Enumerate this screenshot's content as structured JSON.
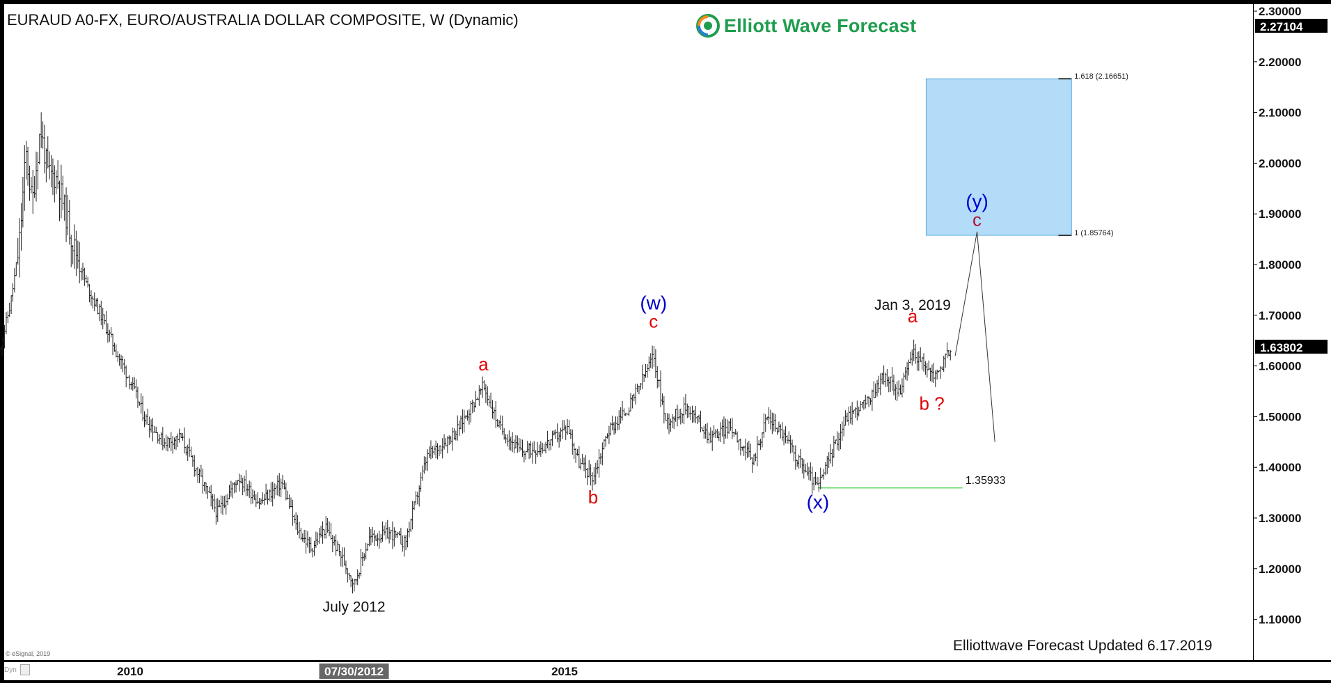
{
  "header": {
    "title": "EURAUD A0-FX, EURO/AUSTRALIA DOLLAR COMPOSITE, W (Dynamic)",
    "brand": "Elliott Wave Forecast"
  },
  "footer": {
    "updated": "Elliottwave Forecast  Updated 6.17.2019",
    "copyright": "© eSignal, 2019",
    "dyn_label": "Dyn"
  },
  "colors": {
    "bars": "#222222",
    "wave_red": "#e00000",
    "wave_blue": "#0000cc",
    "target_box": "#b3dcf8",
    "support_line": "#33cc33",
    "brand_green": "#1f9d4e"
  },
  "icons": [
    "elliott-wave-forecast-logo-icon",
    "chart-settings-icon"
  ],
  "chart_data": {
    "type": "ohlc",
    "interval": "weekly",
    "y_scale": "linear",
    "ylim": [
      1.05,
      2.3
    ],
    "y_ticks": [
      "2.30000",
      "2.20000",
      "2.10000",
      "2.00000",
      "1.90000",
      "1.80000",
      "1.70000",
      "1.60000",
      "1.50000",
      "1.40000",
      "1.30000",
      "1.20000",
      "1.10000"
    ],
    "x_ticks": [
      "2010",
      "07/30/2012",
      "2015"
    ],
    "price_tags": [
      {
        "label": "2.27104",
        "value": 2.27104
      },
      {
        "label": "1.63802",
        "value": 1.63802
      }
    ],
    "price_path": [
      [
        "2008-07-01",
        1.63
      ],
      [
        "2008-08-15",
        1.72
      ],
      [
        "2008-09-20",
        1.83
      ],
      [
        "2008-10-20",
        2.02
      ],
      [
        "2008-11-15",
        1.92
      ],
      [
        "2008-12-20",
        2.07
      ],
      [
        "2009-01-20",
        1.98
      ],
      [
        "2009-03-01",
        1.97
      ],
      [
        "2009-05-01",
        1.85
      ],
      [
        "2009-07-01",
        1.76
      ],
      [
        "2009-09-01",
        1.7
      ],
      [
        "2009-11-01",
        1.63
      ],
      [
        "2010-01-01",
        1.57
      ],
      [
        "2010-03-01",
        1.5
      ],
      [
        "2010-05-20",
        1.45
      ],
      [
        "2010-08-01",
        1.46
      ],
      [
        "2010-11-01",
        1.37
      ],
      [
        "2011-01-01",
        1.31
      ],
      [
        "2011-04-01",
        1.38
      ],
      [
        "2011-07-01",
        1.33
      ],
      [
        "2011-10-01",
        1.37
      ],
      [
        "2011-12-01",
        1.28
      ],
      [
        "2012-02-01",
        1.24
      ],
      [
        "2012-04-01",
        1.28
      ],
      [
        "2012-06-01",
        1.23
      ],
      [
        "2012-07-30",
        1.17
      ],
      [
        "2012-10-01",
        1.26
      ],
      [
        "2013-01-01",
        1.27
      ],
      [
        "2013-03-01",
        1.25
      ],
      [
        "2013-06-01",
        1.42
      ],
      [
        "2013-10-01",
        1.47
      ],
      [
        "2014-01-25",
        1.56
      ],
      [
        "2014-04-01",
        1.48
      ],
      [
        "2014-07-01",
        1.43
      ],
      [
        "2014-10-01",
        1.44
      ],
      [
        "2015-01-15",
        1.48
      ],
      [
        "2015-03-01",
        1.41
      ],
      [
        "2015-05-01",
        1.38
      ],
      [
        "2015-07-01",
        1.47
      ],
      [
        "2015-10-01",
        1.52
      ],
      [
        "2016-01-10",
        1.62
      ],
      [
        "2016-03-01",
        1.49
      ],
      [
        "2016-06-01",
        1.52
      ],
      [
        "2016-09-01",
        1.46
      ],
      [
        "2016-12-01",
        1.48
      ],
      [
        "2017-03-01",
        1.41
      ],
      [
        "2017-05-01",
        1.5
      ],
      [
        "2017-07-01",
        1.47
      ],
      [
        "2017-09-01",
        1.42
      ],
      [
        "2017-12-01",
        1.36
      ],
      [
        "2018-01-20",
        1.42
      ],
      [
        "2018-04-01",
        1.5
      ],
      [
        "2018-07-01",
        1.53
      ],
      [
        "2018-09-01",
        1.58
      ],
      [
        "2018-11-15",
        1.55
      ],
      [
        "2019-01-03",
        1.63
      ],
      [
        "2019-02-20",
        1.6
      ],
      [
        "2019-04-10",
        1.58
      ],
      [
        "2019-06-17",
        1.63802
      ]
    ],
    "target_zone": {
      "upper": {
        "label": "1.618 (2.16651)",
        "value": 2.16651
      },
      "lower": {
        "label": "1 (1.85764)",
        "value": 1.85764
      },
      "x_start": "2019-03-01",
      "x_end": "2020-11-01"
    },
    "support_line": {
      "label": "1.35933",
      "value": 1.35933,
      "x_start": "2017-12-01",
      "x_end": "2019-08-01"
    },
    "projection": [
      [
        "2019-07-01",
        1.62
      ],
      [
        "2019-10-01",
        1.865
      ],
      [
        "2019-12-15",
        1.45
      ]
    ],
    "wave_labels": [
      {
        "text": "a",
        "date": "2014-01-25",
        "value": 1.58,
        "color": "red",
        "position": "above"
      },
      {
        "text": "b",
        "date": "2015-05-01",
        "value": 1.37,
        "color": "red",
        "position": "below"
      },
      {
        "text": "c",
        "date": "2016-01-10",
        "value": 1.665,
        "color": "red",
        "position": "above"
      },
      {
        "text": "(w)",
        "date": "2016-01-10",
        "value": 1.665,
        "color": "blue",
        "position": "above2"
      },
      {
        "text": "(x)",
        "date": "2017-12-01",
        "value": 1.36,
        "color": "blue",
        "position": "below"
      },
      {
        "text": "a",
        "date": "2019-01-03",
        "value": 1.675,
        "color": "red",
        "position": "above"
      },
      {
        "text": "b ?",
        "date": "2019-03-25",
        "value": 1.555,
        "color": "red",
        "position": "below"
      },
      {
        "text": "c",
        "date": "2019-10-01",
        "value": 1.865,
        "color": "crimson",
        "position": "above"
      },
      {
        "text": "(y)",
        "date": "2019-10-01",
        "value": 1.865,
        "color": "blue",
        "position": "above2"
      }
    ],
    "annotations": [
      {
        "text": "July 2012",
        "date": "2012-07-30",
        "value": 1.17
      },
      {
        "text": "Jan 3, 2019",
        "date": "2019-01-03",
        "value": 1.675
      }
    ]
  }
}
